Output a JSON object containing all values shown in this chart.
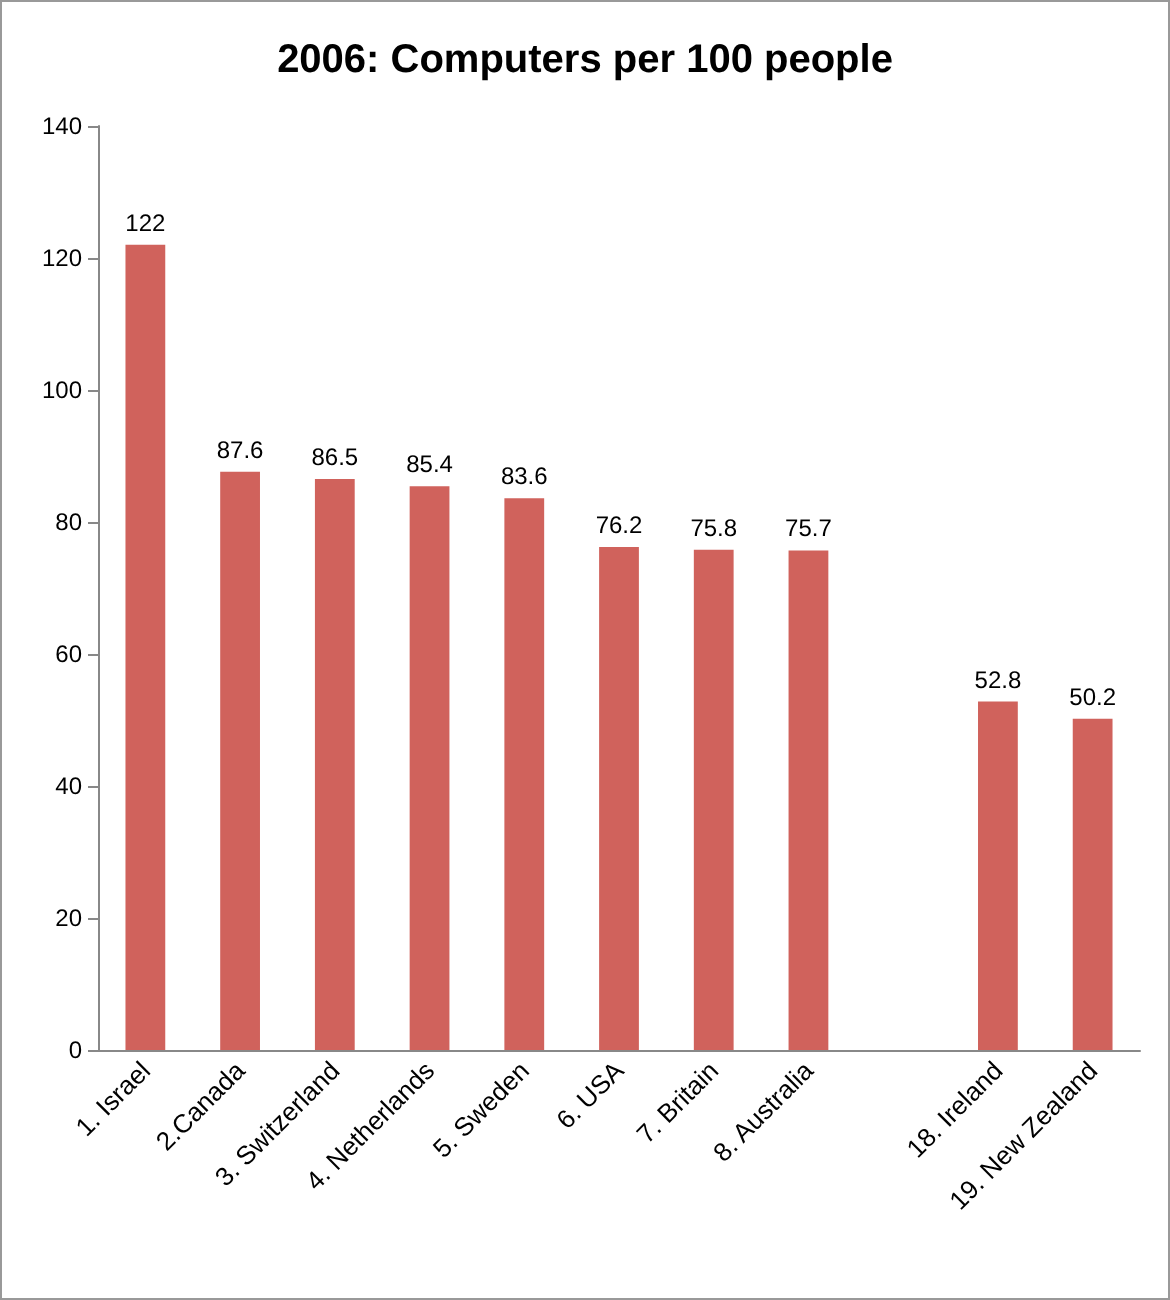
{
  "chart_data": {
    "type": "bar",
    "title": "2006: Computers per 100 people",
    "categories": [
      "1. Israel",
      "2.Canada",
      "3. Switzerland",
      "4. Netherlands",
      "5. Sweden",
      "6. USA",
      "7. Britain",
      "8. Australia",
      null,
      "18. Ireland",
      "19. New Zealand"
    ],
    "values": [
      122,
      87.6,
      86.5,
      85.4,
      83.6,
      76.2,
      75.8,
      75.7,
      null,
      52.8,
      50.2
    ],
    "color": "#d0625c",
    "ylim": [
      0,
      140
    ],
    "yticks": [
      0,
      20,
      40,
      60,
      80,
      100,
      120,
      140
    ],
    "data_labels": true,
    "grid": false
  }
}
